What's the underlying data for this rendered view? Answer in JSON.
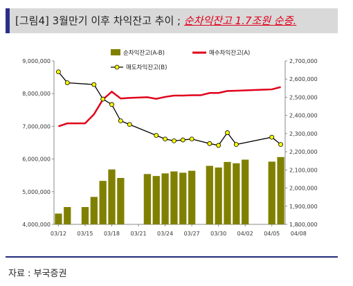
{
  "header": {
    "title_prefix": "[그림4] 3월만기 이후 차익잔고 추이",
    "title_sep": " ; ",
    "title_highlight": "순차익잔고 1.7조원 순증."
  },
  "footer": {
    "source": "자료 : 부국증권"
  },
  "colors": {
    "bar": "#808000",
    "red_line": "#e0001b",
    "black_line": "#000000",
    "marker": "#ffff00"
  },
  "chart_data": {
    "type": "bar",
    "title": "",
    "xlabel": "",
    "ylabel": "",
    "x_ticks": [
      "03/12",
      "03/15",
      "03/18",
      "03/21",
      "03/24",
      "03/27",
      "03/30",
      "04/02",
      "04/05",
      "04/08"
    ],
    "y_left_ticks": [
      "4,000,000",
      "5,000,000",
      "6,000,000",
      "7,000,000",
      "8,000,000",
      "9,000,000"
    ],
    "y_right_ticks": [
      "1,800,000",
      "1,900,000",
      "2,000,000",
      "2,100,000",
      "2,200,000",
      "2,300,000",
      "2,400,000",
      "2,500,000",
      "2,600,000",
      "2,700,000"
    ],
    "ylim_left": [
      4000000,
      9000000
    ],
    "ylim_right": [
      1800000,
      2700000
    ],
    "grid": false,
    "legend_position": "top",
    "series": [
      {
        "name": "순차익잔고(A-B)",
        "kind": "bar",
        "axis": "left",
        "x": [
          0,
          1,
          3,
          4,
          5,
          6,
          7,
          10,
          11,
          12,
          13,
          14,
          15,
          17,
          18,
          19,
          20,
          21,
          24,
          25
        ],
        "values": [
          4330000,
          4530000,
          4530000,
          4840000,
          5330000,
          5680000,
          5420000,
          5540000,
          5480000,
          5560000,
          5620000,
          5580000,
          5640000,
          5790000,
          5740000,
          5910000,
          5870000,
          5980000,
          5920000,
          6060000
        ]
      },
      {
        "name": "매수차익잔고(A)",
        "kind": "line",
        "axis": "left",
        "x": [
          0,
          1,
          2,
          3,
          4,
          5,
          6,
          7,
          8,
          9,
          10,
          11,
          12,
          13,
          14,
          15,
          16,
          17,
          18,
          19,
          20,
          21,
          22,
          23,
          24,
          25
        ],
        "values": [
          7000000,
          7090000,
          7090000,
          7090000,
          7370000,
          7820000,
          8060000,
          7850000,
          7870000,
          7880000,
          7890000,
          7840000,
          7900000,
          7940000,
          7940000,
          7950000,
          7950000,
          8020000,
          8020000,
          8080000,
          8090000,
          8100000,
          8110000,
          8120000,
          8130000,
          8200000
        ]
      },
      {
        "name": "매도차익잔고(B)",
        "kind": "line",
        "axis": "right",
        "x": [
          0,
          1,
          4,
          5,
          6,
          7,
          8,
          11,
          12,
          13,
          14,
          15,
          17,
          18,
          19,
          20,
          24,
          25
        ],
        "values": [
          2640000,
          2580000,
          2570000,
          2490000,
          2460000,
          2370000,
          2350000,
          2290000,
          2270000,
          2260000,
          2265000,
          2270000,
          2245000,
          2235000,
          2305000,
          2240000,
          2280000,
          2240000
        ]
      }
    ]
  }
}
